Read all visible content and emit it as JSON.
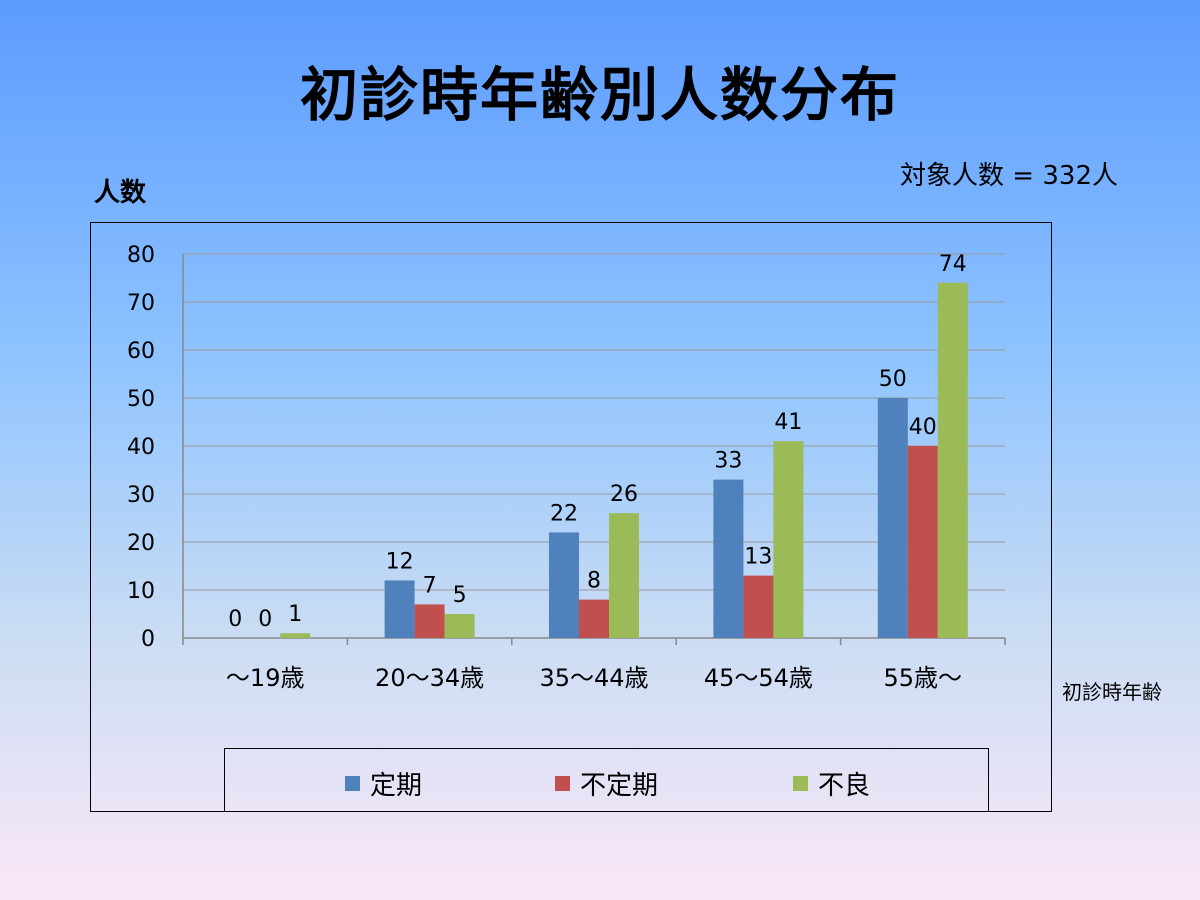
{
  "title": "初診時年齢別人数分布",
  "total_label": "対象人数 = 332人",
  "colors": {
    "teiki": "#4f81bd",
    "futeiki": "#c0504d",
    "furyo": "#9bbb59",
    "grid": "#9a9a9a",
    "axis": "#888888"
  },
  "chart_data": {
    "type": "bar",
    "ylabel": "人数",
    "xlabel": "初診時年齢",
    "categories": [
      "～19歳",
      "20～34歳",
      "35～44歳",
      "45～54歳",
      "55歳～"
    ],
    "series": [
      {
        "name": "定期",
        "values": [
          0,
          12,
          22,
          33,
          50
        ]
      },
      {
        "name": "不定期",
        "values": [
          0,
          7,
          8,
          13,
          40
        ]
      },
      {
        "name": "不良",
        "values": [
          1,
          5,
          26,
          41,
          74
        ]
      }
    ],
    "ylim": [
      0,
      80
    ],
    "yticks": [
      0,
      10,
      20,
      30,
      40,
      50,
      60,
      70,
      80
    ],
    "grid": true,
    "legend": "bottom"
  }
}
